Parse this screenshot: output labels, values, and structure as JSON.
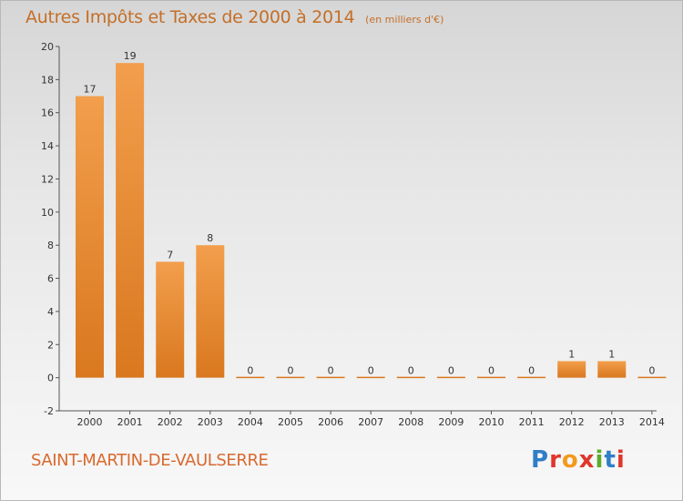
{
  "chart_data": {
    "type": "bar",
    "title": "Autres Impôts et Taxes de 2000 à 2014",
    "subtitle": "(en milliers d'€)",
    "categories": [
      "2000",
      "2001",
      "2002",
      "2003",
      "2004",
      "2005",
      "2006",
      "2007",
      "2008",
      "2009",
      "2010",
      "2011",
      "2012",
      "2013",
      "2014"
    ],
    "values": [
      17,
      19,
      7,
      8,
      0,
      0,
      0,
      0,
      0,
      0,
      0,
      0,
      1,
      1,
      0
    ],
    "ylim": [
      -2,
      20
    ],
    "yticks": [
      -2,
      0,
      2,
      4,
      6,
      8,
      10,
      12,
      14,
      16,
      18,
      20
    ],
    "grid": false,
    "xlabel": "",
    "ylabel": "",
    "bar_color": "#f29e4c",
    "bar_color_dark": "#d9781f"
  },
  "commune": "SAINT-MARTIN-DE-VAULSERRE",
  "logo": {
    "letters": [
      "P",
      "r",
      "o",
      "x",
      "i",
      "t",
      "i"
    ]
  },
  "colors": {
    "title": "#c46f27",
    "commune": "#d9692f",
    "axis": "#555555"
  }
}
